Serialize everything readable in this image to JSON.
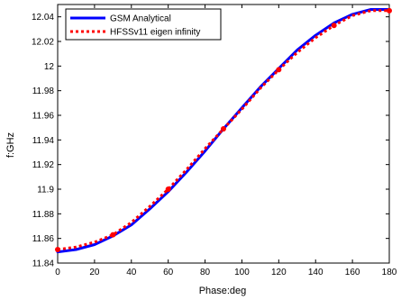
{
  "chart_data": {
    "type": "line",
    "title": "",
    "xlabel": "Phase:deg",
    "ylabel": "f:GHz",
    "xlim": [
      0,
      180
    ],
    "ylim": [
      11.84,
      12.05
    ],
    "xticks": [
      0,
      20,
      40,
      60,
      80,
      100,
      120,
      140,
      160,
      180
    ],
    "yticks": [
      11.84,
      11.86,
      11.88,
      11.9,
      11.92,
      11.94,
      11.96,
      11.98,
      12,
      12.02,
      12.04
    ],
    "ytick_labels": [
      "11.84",
      "11.86",
      "11.88",
      "11.9",
      "11.92",
      "11.94",
      "11.96",
      "11.98",
      "12",
      "12.02",
      "12.04"
    ],
    "grid": false,
    "legend_position": "top-left",
    "series": [
      {
        "name": "GSM Analytical",
        "color": "#0000ff",
        "style": "solid",
        "x": [
          0,
          10,
          20,
          30,
          40,
          50,
          60,
          70,
          80,
          90,
          100,
          110,
          120,
          130,
          140,
          150,
          160,
          170,
          180
        ],
        "y": [
          11.849,
          11.851,
          11.855,
          11.862,
          11.871,
          11.884,
          11.898,
          11.914,
          11.931,
          11.949,
          11.966,
          11.983,
          11.998,
          12.013,
          12.025,
          12.035,
          12.042,
          12.046,
          12.046
        ]
      },
      {
        "name": "HFSSv11 eigen infinity",
        "color": "#ff0000",
        "style": "dotted",
        "x": [
          0,
          10,
          20,
          30,
          40,
          50,
          60,
          70,
          80,
          90,
          100,
          110,
          120,
          130,
          140,
          150,
          160,
          170,
          180
        ],
        "y": [
          11.851,
          11.853,
          11.857,
          11.863,
          11.873,
          11.886,
          11.9,
          11.916,
          11.933,
          11.949,
          11.965,
          11.982,
          11.997,
          12.011,
          12.023,
          12.033,
          12.041,
          12.045,
          12.045
        ],
        "markers_x": [
          0,
          30,
          60,
          90,
          120,
          150,
          180
        ],
        "markers_y": [
          11.851,
          11.863,
          11.9,
          11.949,
          11.997,
          12.033,
          12.045
        ]
      }
    ]
  }
}
